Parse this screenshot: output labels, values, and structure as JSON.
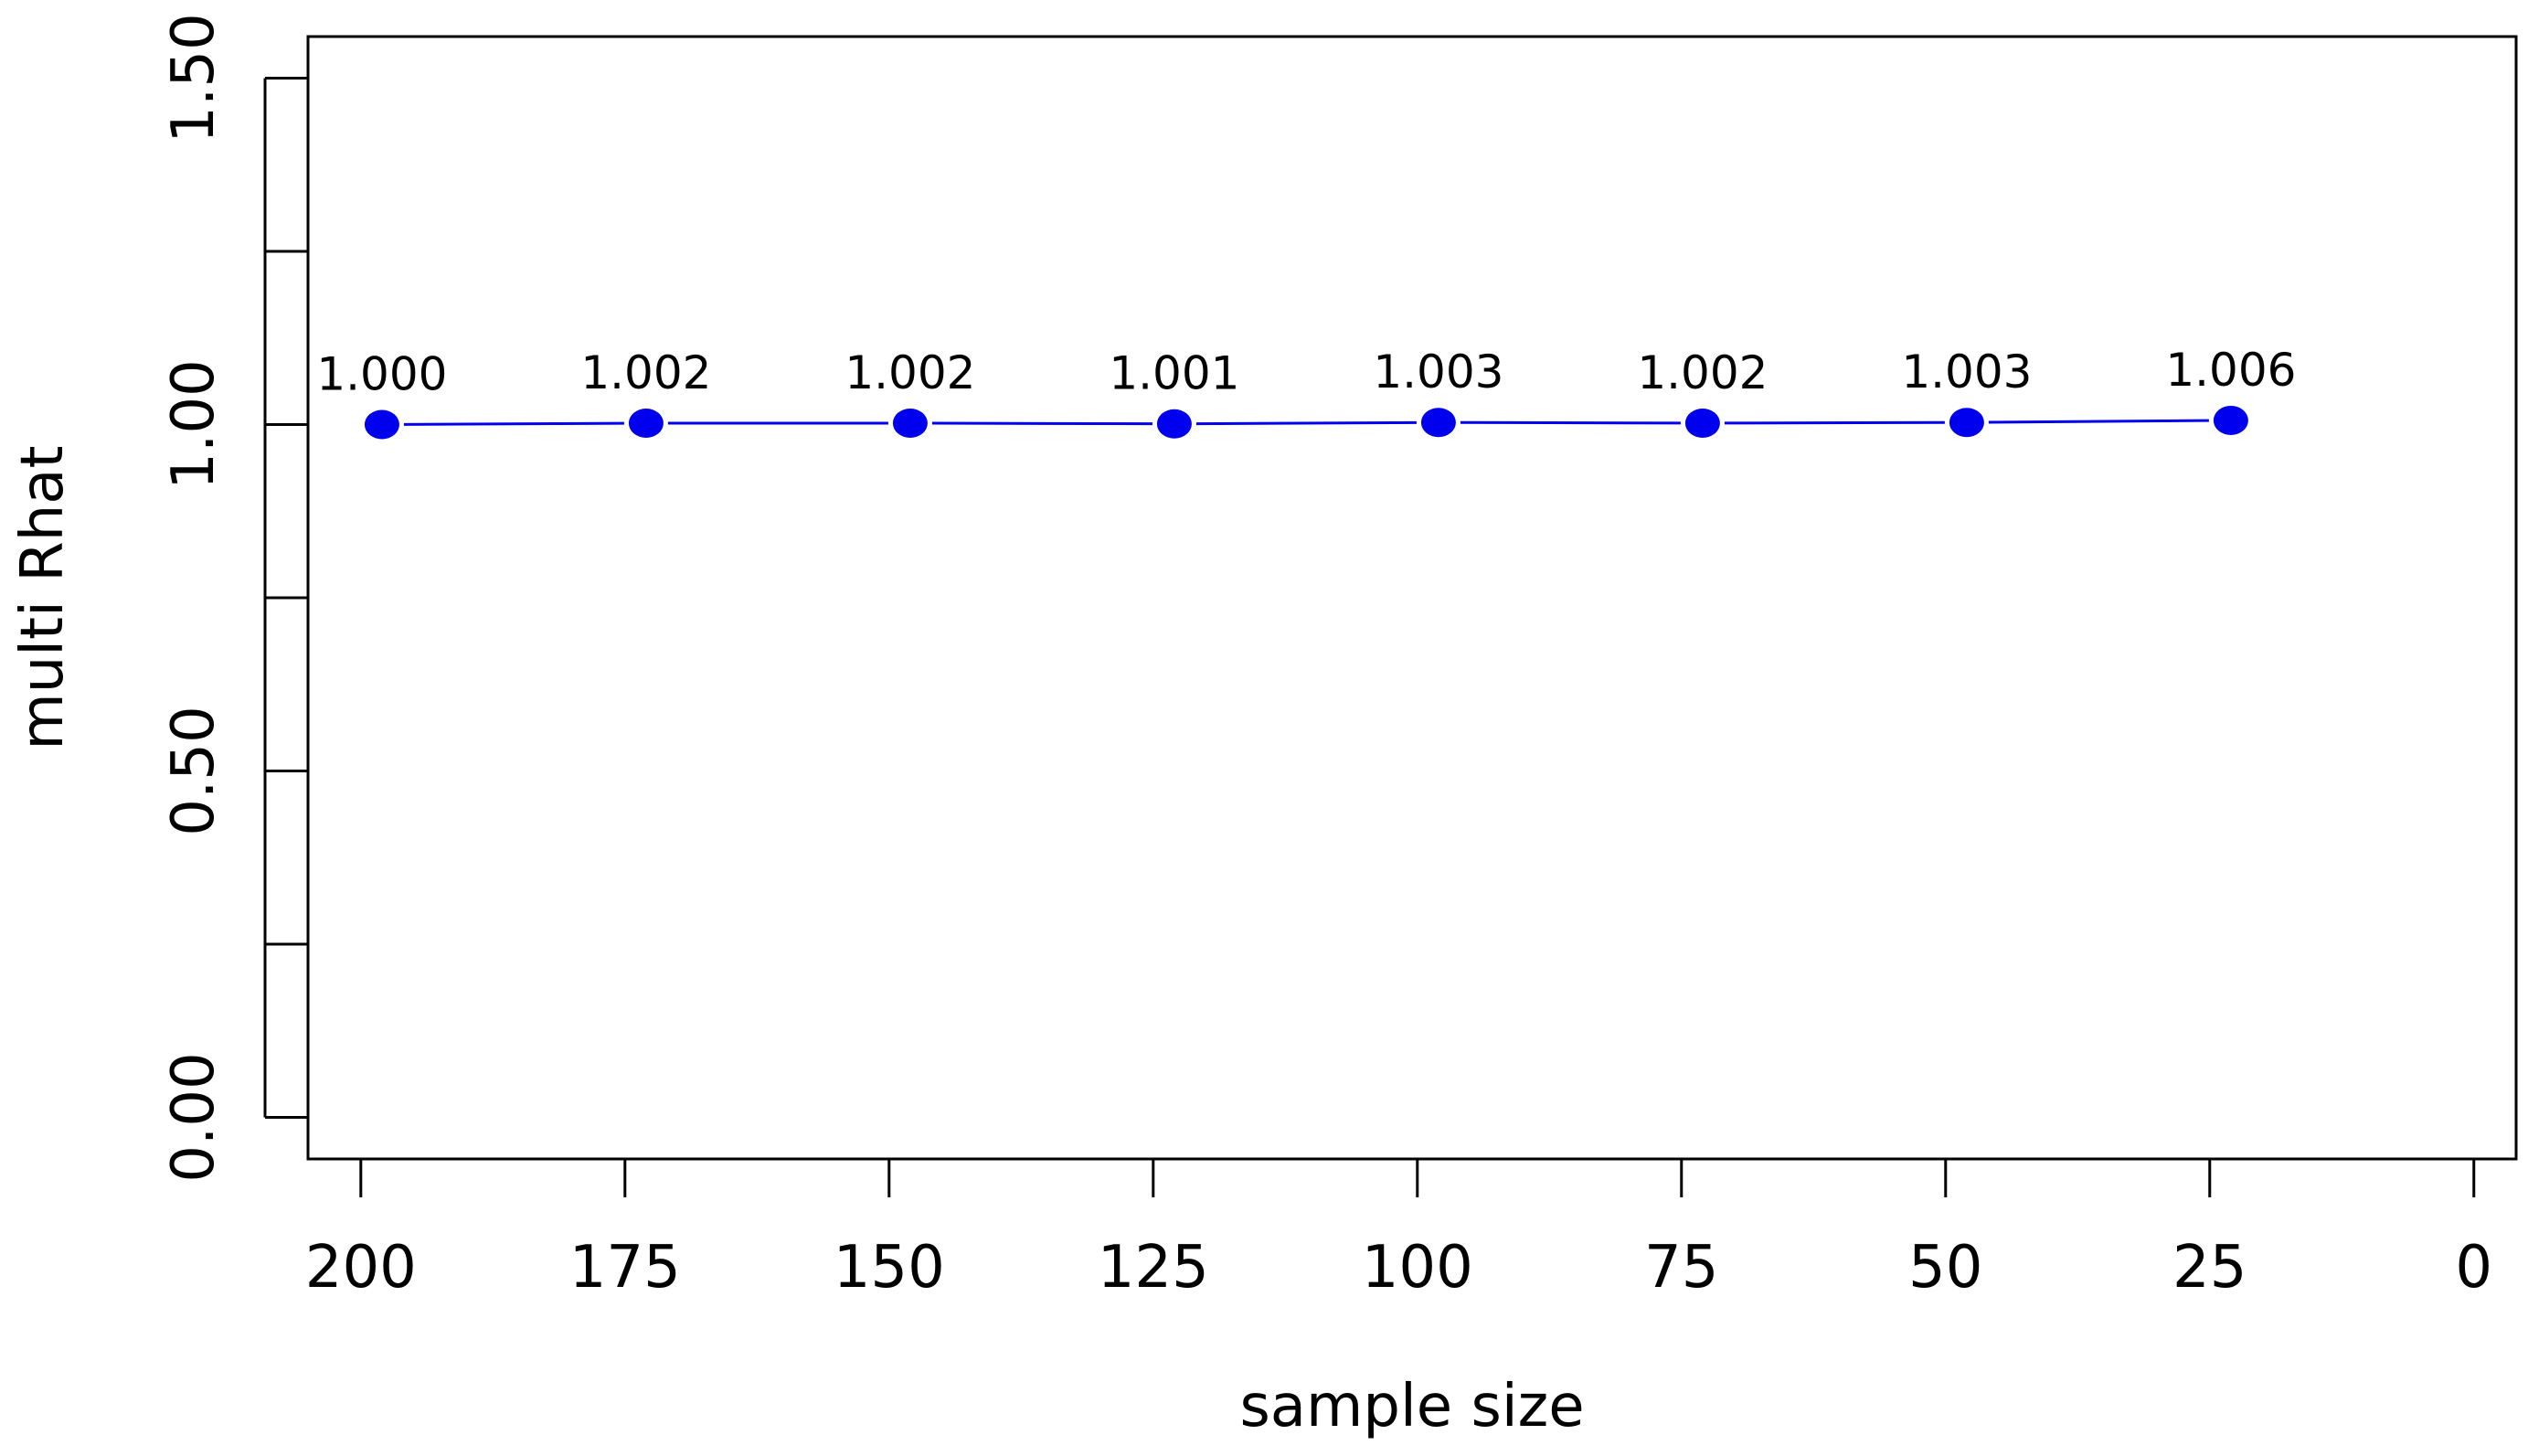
{
  "chart_data": {
    "type": "line",
    "title": "",
    "xlabel": "sample size",
    "ylabel": "multi Rhat",
    "x_ticks": [
      "200",
      "175",
      "150",
      "125",
      "100",
      "75",
      "50",
      "25",
      "0"
    ],
    "y_ticks": [
      "0.00",
      "0.50",
      "1.00",
      "1.50"
    ],
    "xlim": [
      205,
      -4
    ],
    "ylim": [
      -0.06,
      1.56
    ],
    "x_reversed": true,
    "grid": false,
    "series": [
      {
        "x": [
          198,
          173,
          148,
          123,
          98,
          73,
          48,
          23
        ],
        "values": [
          1.0,
          1.002,
          1.002,
          1.001,
          1.003,
          1.002,
          1.003,
          1.006
        ],
        "labels": [
          "1.000",
          "1.002",
          "1.002",
          "1.001",
          "1.003",
          "1.002",
          "1.003",
          "1.006"
        ],
        "color": "#0000ee"
      }
    ]
  }
}
